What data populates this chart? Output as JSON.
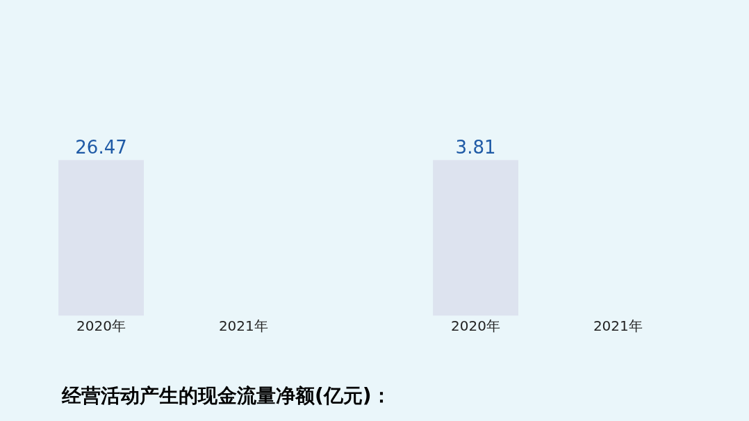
{
  "chart_data": [
    {
      "type": "bar",
      "categories": [
        "2020年",
        "2021年"
      ],
      "values": [
        26.47,
        null
      ],
      "color": "#dde3ef",
      "data_labels": true,
      "tick_labels": "x",
      "grid": false,
      "annotations": [
        "经营活动产生的现金流量净额(亿元)："
      ]
    },
    {
      "type": "bar",
      "categories": [
        "2020年",
        "2021年"
      ],
      "values": [
        3.81,
        null
      ],
      "color": "#dde3ef",
      "data_labels": true,
      "tick_labels": "x",
      "grid": false
    }
  ]
}
